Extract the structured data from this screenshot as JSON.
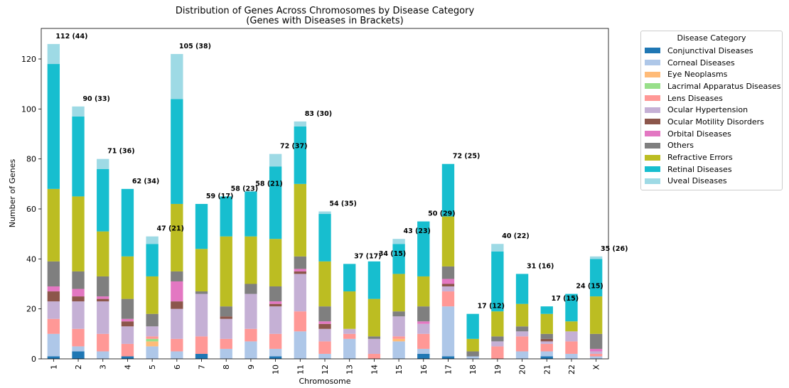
{
  "chart_data": {
    "type": "bar",
    "stacked": true,
    "title": "Distribution of Genes Across Chromosomes by Disease Category",
    "subtitle": "(Genes with Diseases in Brackets)",
    "xlabel": "Chromosome",
    "ylabel": "Number of Genes",
    "ylim": [
      0,
      130
    ],
    "yticks": [
      0,
      20,
      40,
      60,
      80,
      100,
      120
    ],
    "grid": false,
    "legend": {
      "title": "Disease Category",
      "placement": "outside-right"
    },
    "categories": [
      "1",
      "2",
      "3",
      "4",
      "5",
      "6",
      "7",
      "8",
      "9",
      "10",
      "11",
      "12",
      "13",
      "14",
      "15",
      "16",
      "17",
      "18",
      "19",
      "20",
      "21",
      "22",
      "X"
    ],
    "annotations": [
      "112 (44)",
      "90 (33)",
      "71 (36)",
      "62 (34)",
      "47 (21)",
      "105 (38)",
      "59 (17)",
      "58 (23)",
      "58 (21)",
      "72 (37)",
      "83 (30)",
      "54 (35)",
      "37 (17)",
      "34 (15)",
      "43 (23)",
      "50 (29)",
      "72 (25)",
      "17 (12)",
      "40 (22)",
      "31 (16)",
      "17 (15)",
      "24 (15)",
      "35 (26)"
    ],
    "series": [
      {
        "name": "Conjunctival Diseases",
        "color": "#1f77b4",
        "values": [
          1,
          3,
          0,
          1,
          0,
          0,
          2,
          0,
          0,
          1,
          0,
          0,
          0,
          0,
          0,
          2,
          1,
          0,
          0,
          0,
          1,
          0,
          0
        ]
      },
      {
        "name": "Corneal Diseases",
        "color": "#aec7e8",
        "values": [
          9,
          2,
          3,
          0,
          5,
          3,
          0,
          4,
          7,
          3,
          11,
          2,
          8,
          0,
          7,
          2,
          20,
          1,
          0,
          3,
          2,
          2,
          1
        ]
      },
      {
        "name": "Eye Neoplasms",
        "color": "#ffbb78",
        "values": [
          0,
          0,
          0,
          0,
          2,
          0,
          0,
          0,
          0,
          0,
          0,
          0,
          0,
          0,
          1,
          0,
          0,
          0,
          0,
          0,
          0,
          0,
          0
        ]
      },
      {
        "name": "Lacrimal Apparatus Diseases",
        "color": "#98df8a",
        "values": [
          0,
          0,
          0,
          0,
          1,
          0,
          0,
          0,
          0,
          0,
          0,
          0,
          0,
          0,
          0,
          0,
          0,
          0,
          0,
          0,
          0,
          0,
          0
        ]
      },
      {
        "name": "Lens Diseases",
        "color": "#ff9896",
        "values": [
          6,
          7,
          7,
          5,
          1,
          5,
          7,
          4,
          5,
          6,
          8,
          5,
          2,
          2,
          1,
          6,
          6,
          0,
          5,
          6,
          3,
          5,
          1
        ]
      },
      {
        "name": "Ocular Hypertension",
        "color": "#c5b0d5",
        "values": [
          7,
          11,
          13,
          7,
          4,
          12,
          17,
          8,
          14,
          11,
          15,
          5,
          2,
          6,
          8,
          4,
          2,
          0,
          2,
          2,
          1,
          4,
          1
        ]
      },
      {
        "name": "Ocular Motility Disorders",
        "color": "#8c564b",
        "values": [
          4,
          2,
          1,
          2,
          0,
          3,
          0,
          1,
          0,
          1,
          1,
          2,
          0,
          0,
          0,
          0,
          1,
          0,
          0,
          0,
          1,
          0,
          0
        ]
      },
      {
        "name": "Orbital Diseases",
        "color": "#e377c2",
        "values": [
          2,
          3,
          1,
          1,
          0,
          8,
          0,
          0,
          0,
          1,
          1,
          1,
          0,
          0,
          0,
          1,
          2,
          0,
          0,
          0,
          0,
          0,
          1
        ]
      },
      {
        "name": "Others",
        "color": "#7f7f7f",
        "values": [
          10,
          7,
          8,
          8,
          5,
          4,
          1,
          4,
          4,
          6,
          5,
          6,
          0,
          1,
          2,
          6,
          5,
          2,
          2,
          2,
          2,
          0,
          6
        ]
      },
      {
        "name": "Refractive Errors",
        "color": "#bcbd22",
        "values": [
          29,
          30,
          18,
          17,
          15,
          27,
          17,
          28,
          19,
          19,
          29,
          18,
          15,
          15,
          15,
          12,
          20,
          5,
          10,
          9,
          8,
          4,
          15
        ]
      },
      {
        "name": "Retinal Diseases",
        "color": "#17becf",
        "values": [
          50,
          32,
          25,
          27,
          13,
          42,
          18,
          16,
          18,
          29,
          23,
          19,
          11,
          15,
          12,
          22,
          21,
          10,
          24,
          12,
          3,
          11,
          15
        ]
      },
      {
        "name": "Uveal Diseases",
        "color": "#9edae5",
        "values": [
          8,
          4,
          4,
          0,
          3,
          18,
          0,
          0,
          0,
          5,
          2,
          1,
          0,
          0,
          2,
          0,
          0,
          0,
          3,
          0,
          0,
          0,
          1
        ]
      }
    ]
  }
}
